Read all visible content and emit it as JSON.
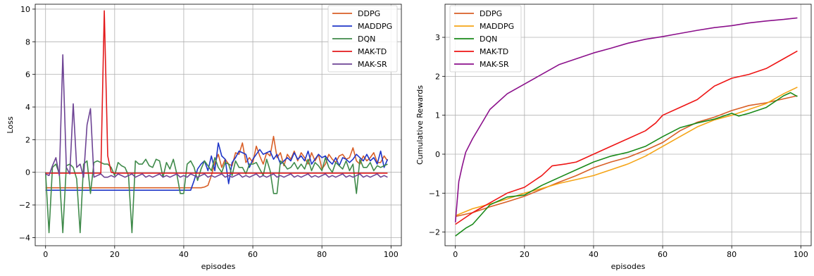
{
  "chart_data": [
    {
      "type": "line",
      "xlabel": "episodes",
      "ylabel": "Loss",
      "xlim": [
        -3,
        103
      ],
      "ylim": [
        -4.5,
        10.3
      ],
      "xticks": [
        0,
        20,
        40,
        60,
        80,
        100
      ],
      "yticks": [
        -4,
        -2,
        0,
        2,
        4,
        6,
        8,
        10
      ],
      "grid": true,
      "legend_position": "top-right",
      "series": [
        {
          "name": "DDPG",
          "color": "#d95f27",
          "values": [
            -0.95,
            -0.95,
            -0.95,
            -0.95,
            -0.95,
            -0.95,
            -0.95,
            -0.95,
            -0.95,
            -0.95,
            -0.95,
            -0.95,
            -0.95,
            -0.95,
            -0.95,
            -0.95,
            -0.95,
            -0.95,
            -0.95,
            -0.95,
            -0.95,
            -0.95,
            -0.95,
            -0.95,
            -0.95,
            -0.95,
            -0.95,
            -0.95,
            -0.95,
            -0.95,
            -0.95,
            -0.95,
            -0.95,
            -0.95,
            -0.95,
            -0.95,
            -0.95,
            -0.95,
            -0.95,
            -0.95,
            -0.95,
            -0.95,
            -0.95,
            -0.95,
            -0.95,
            -0.95,
            -0.9,
            -0.8,
            -0.2,
            0.6,
            1.1,
            0.3,
            0.8,
            0.5,
            0.4,
            1.2,
            1.1,
            1.8,
            0.6,
            0.9,
            0.6,
            1.6,
            1.0,
            0.5,
            1.2,
            1.0,
            2.2,
            0.9,
            1.2,
            0.4,
            1.1,
            0.8,
            1.3,
            0.7,
            1.2,
            0.9,
            0.5,
            1.2,
            0.7,
            1.1,
            0.2,
            0.5,
            1.1,
            0.8,
            0.6,
            1.0,
            1.1,
            0.8,
            0.9,
            1.5,
            0.7,
            0.5,
            1.0,
            0.7,
            0.9,
            1.2,
            0.6,
            0.6,
            1.0,
            0.7
          ]
        },
        {
          "name": "MADDPG",
          "color": "#1f36c8",
          "values": [
            -1.1,
            -1.1,
            -1.1,
            -1.1,
            -1.1,
            -1.1,
            -1.1,
            -1.1,
            -1.1,
            -1.1,
            -1.1,
            -1.1,
            -1.1,
            -1.1,
            -1.1,
            -1.1,
            -1.1,
            -1.1,
            -1.1,
            -1.1,
            -1.1,
            -1.1,
            -1.1,
            -1.1,
            -1.1,
            -1.1,
            -1.1,
            -1.1,
            -1.1,
            -1.1,
            -1.1,
            -1.1,
            -1.1,
            -1.1,
            -1.1,
            -1.1,
            -1.1,
            -1.1,
            -1.1,
            -1.1,
            -1.1,
            -1.1,
            -1.1,
            -0.5,
            0.2,
            0.5,
            0.7,
            0.1,
            1.0,
            0.1,
            1.8,
            1.0,
            0.8,
            -0.7,
            0.6,
            0.9,
            1.3,
            1.2,
            1.1,
            0.3,
            0.8,
            1.1,
            1.4,
            1.1,
            1.2,
            1.3,
            0.8,
            1.1,
            0.5,
            0.7,
            0.9,
            0.7,
            1.2,
            0.8,
            1.0,
            0.7,
            1.3,
            0.5,
            0.8,
            1.1,
            0.9,
            1.0,
            0.7,
            0.5,
            0.9,
            0.4,
            0.9,
            0.8,
            0.6,
            0.8,
            1.1,
            0.9,
            0.7,
            1.1,
            0.7,
            0.9,
            0.5,
            1.3,
            0.3,
            0.8
          ]
        },
        {
          "name": "DQN",
          "color": "#3f8a4a",
          "values": [
            0.0,
            -3.7,
            0.3,
            0.5,
            -0.1,
            -3.7,
            0.4,
            0.5,
            0.3,
            -0.4,
            -3.7,
            0.5,
            0.7,
            -1.3,
            0.6,
            0.7,
            0.6,
            0.5,
            0.5,
            0.3,
            -0.2,
            0.6,
            0.4,
            0.3,
            -0.2,
            -3.7,
            0.7,
            0.5,
            0.5,
            0.8,
            0.4,
            0.3,
            0.8,
            0.7,
            -0.3,
            0.6,
            0.2,
            0.8,
            -0.1,
            -1.3,
            -1.3,
            0.5,
            0.7,
            0.3,
            -0.5,
            0.2,
            0.7,
            0.4,
            0.1,
            0.9,
            0.3,
            0.0,
            0.6,
            0.5,
            -0.2,
            0.7,
            0.3,
            0.3,
            -0.1,
            0.5,
            0.5,
            0.6,
            0.2,
            -0.2,
            0.8,
            0.1,
            -1.3,
            -1.3,
            0.7,
            0.5,
            0.2,
            0.3,
            0.6,
            0.2,
            0.5,
            0.2,
            0.8,
            0.1,
            0.6,
            0.4,
            0.1,
            0.9,
            0.3,
            0.0,
            0.6,
            0.4,
            0.2,
            0.7,
            0.1,
            0.5,
            -1.3,
            0.8,
            0.3,
            0.3,
            0.6,
            0.1,
            0.4,
            0.3,
            0.4,
            0.5
          ]
        },
        {
          "name": "MAK-TD",
          "color": "#e31a1c",
          "values": [
            -0.05,
            -0.05,
            -0.05,
            -0.05,
            -0.05,
            -0.05,
            -0.05,
            -0.05,
            -0.05,
            -0.05,
            -0.05,
            -0.05,
            -0.05,
            -0.05,
            -0.05,
            -0.05,
            -0.05,
            9.9,
            1.0,
            0.0,
            -0.05,
            -0.05,
            -0.05,
            -0.05,
            -0.05,
            -0.05,
            -0.05,
            -0.05,
            -0.05,
            -0.05,
            -0.05,
            -0.05,
            -0.05,
            -0.05,
            -0.05,
            -0.05,
            -0.05,
            -0.05,
            -0.05,
            -0.05,
            -0.05,
            -0.05,
            -0.05,
            -0.05,
            -0.05,
            -0.05,
            -0.05,
            -0.05,
            -0.05,
            -0.05,
            -0.05,
            -0.05,
            -0.05,
            -0.05,
            -0.05,
            -0.05,
            -0.05,
            -0.05,
            -0.05,
            -0.05,
            -0.05,
            -0.05,
            -0.05,
            -0.05,
            -0.05,
            -0.05,
            -0.05,
            -0.05,
            -0.05,
            -0.05,
            -0.05,
            -0.05,
            -0.05,
            -0.05,
            -0.05,
            -0.05,
            -0.05,
            -0.05,
            -0.05,
            -0.05,
            -0.05,
            -0.05,
            -0.05,
            -0.05,
            -0.05,
            -0.05,
            -0.05,
            -0.05,
            -0.05,
            -0.05,
            -0.05,
            -0.05,
            -0.05,
            -0.05,
            -0.05,
            -0.05,
            -0.05,
            -0.05,
            -0.05,
            -0.05
          ]
        },
        {
          "name": "MAK-SR",
          "color": "#6d4394",
          "values": [
            -0.1,
            -0.2,
            0.4,
            0.9,
            -0.2,
            7.2,
            0.3,
            -0.1,
            4.2,
            0.3,
            0.5,
            -0.3,
            2.9,
            3.9,
            -0.3,
            -0.2,
            -0.1,
            -0.3,
            -0.3,
            -0.2,
            -0.3,
            -0.1,
            -0.2,
            -0.3,
            -0.2,
            -0.1,
            -0.3,
            -0.2,
            -0.1,
            -0.3,
            -0.2,
            -0.3,
            -0.2,
            -0.1,
            -0.3,
            -0.2,
            -0.3,
            -0.2,
            -0.1,
            -0.3,
            -0.2,
            -0.3,
            -0.1,
            -0.2,
            -0.3,
            -0.2,
            -0.1,
            -0.3,
            -0.2,
            -0.3,
            -0.2,
            -0.1,
            -0.3,
            -0.2,
            -0.3,
            -0.2,
            -0.1,
            -0.3,
            -0.2,
            -0.3,
            -0.2,
            -0.1,
            -0.3,
            -0.2,
            -0.3,
            -0.2,
            -0.1,
            -0.3,
            -0.2,
            -0.3,
            -0.2,
            -0.1,
            -0.3,
            -0.2,
            -0.3,
            -0.2,
            -0.1,
            -0.3,
            -0.2,
            -0.3,
            -0.2,
            -0.1,
            -0.3,
            -0.2,
            -0.3,
            -0.2,
            -0.1,
            -0.3,
            -0.2,
            -0.3,
            -0.2,
            -0.1,
            -0.3,
            -0.2,
            -0.3,
            -0.2,
            -0.1,
            -0.3,
            -0.2,
            -0.3
          ]
        }
      ]
    },
    {
      "type": "line",
      "xlabel": "episodes",
      "ylabel": "Cumulative Rewards",
      "xlim": [
        -3,
        103
      ],
      "ylim": [
        -2.35,
        3.85
      ],
      "xticks": [
        0,
        20,
        40,
        60,
        80,
        100
      ],
      "yticks": [
        -2,
        -1,
        0,
        1,
        2,
        3
      ],
      "grid": true,
      "legend_position": "top-left",
      "series": [
        {
          "name": "DDPG",
          "color": "#d95f27",
          "points": [
            [
              0,
              -1.6
            ],
            [
              5,
              -1.5
            ],
            [
              10,
              -1.35
            ],
            [
              15,
              -1.22
            ],
            [
              20,
              -1.08
            ],
            [
              25,
              -0.9
            ],
            [
              30,
              -0.72
            ],
            [
              35,
              -0.55
            ],
            [
              40,
              -0.35
            ],
            [
              45,
              -0.2
            ],
            [
              50,
              -0.08
            ],
            [
              55,
              0.1
            ],
            [
              60,
              0.3
            ],
            [
              65,
              0.6
            ],
            [
              70,
              0.82
            ],
            [
              75,
              0.95
            ],
            [
              80,
              1.12
            ],
            [
              85,
              1.25
            ],
            [
              90,
              1.32
            ],
            [
              95,
              1.42
            ],
            [
              99,
              1.5
            ]
          ]
        },
        {
          "name": "MADDPG",
          "color": "#f5a416",
          "points": [
            [
              0,
              -1.58
            ],
            [
              5,
              -1.4
            ],
            [
              10,
              -1.28
            ],
            [
              15,
              -1.15
            ],
            [
              20,
              -1.0
            ],
            [
              25,
              -0.88
            ],
            [
              30,
              -0.75
            ],
            [
              35,
              -0.65
            ],
            [
              40,
              -0.55
            ],
            [
              45,
              -0.4
            ],
            [
              50,
              -0.25
            ],
            [
              55,
              -0.05
            ],
            [
              60,
              0.2
            ],
            [
              65,
              0.45
            ],
            [
              70,
              0.7
            ],
            [
              75,
              0.88
            ],
            [
              80,
              1.0
            ],
            [
              85,
              1.15
            ],
            [
              90,
              1.3
            ],
            [
              95,
              1.55
            ],
            [
              99,
              1.72
            ]
          ]
        },
        {
          "name": "DQN",
          "color": "#1a8a1a",
          "points": [
            [
              0,
              -2.1
            ],
            [
              3,
              -1.9
            ],
            [
              5,
              -1.8
            ],
            [
              10,
              -1.3
            ],
            [
              15,
              -1.1
            ],
            [
              20,
              -1.05
            ],
            [
              25,
              -0.8
            ],
            [
              30,
              -0.6
            ],
            [
              35,
              -0.4
            ],
            [
              40,
              -0.2
            ],
            [
              45,
              -0.05
            ],
            [
              50,
              0.05
            ],
            [
              55,
              0.2
            ],
            [
              60,
              0.45
            ],
            [
              65,
              0.68
            ],
            [
              70,
              0.8
            ],
            [
              75,
              0.9
            ],
            [
              80,
              1.05
            ],
            [
              82,
              0.98
            ],
            [
              85,
              1.05
            ],
            [
              90,
              1.2
            ],
            [
              95,
              1.5
            ],
            [
              97,
              1.58
            ],
            [
              99,
              1.48
            ]
          ]
        },
        {
          "name": "MAK-TD",
          "color": "#ee1515",
          "points": [
            [
              0,
              -1.8
            ],
            [
              5,
              -1.5
            ],
            [
              10,
              -1.25
            ],
            [
              15,
              -1.0
            ],
            [
              20,
              -0.85
            ],
            [
              25,
              -0.55
            ],
            [
              28,
              -0.3
            ],
            [
              32,
              -0.25
            ],
            [
              35,
              -0.2
            ],
            [
              40,
              0.0
            ],
            [
              45,
              0.2
            ],
            [
              50,
              0.4
            ],
            [
              55,
              0.6
            ],
            [
              58,
              0.8
            ],
            [
              60,
              1.0
            ],
            [
              65,
              1.2
            ],
            [
              70,
              1.4
            ],
            [
              75,
              1.75
            ],
            [
              80,
              1.95
            ],
            [
              85,
              2.05
            ],
            [
              90,
              2.2
            ],
            [
              95,
              2.45
            ],
            [
              99,
              2.65
            ]
          ]
        },
        {
          "name": "MAK-SR",
          "color": "#8b108b",
          "points": [
            [
              0,
              -1.75
            ],
            [
              1,
              -0.7
            ],
            [
              2,
              -0.3
            ],
            [
              3,
              0.05
            ],
            [
              5,
              0.4
            ],
            [
              8,
              0.85
            ],
            [
              10,
              1.15
            ],
            [
              15,
              1.55
            ],
            [
              20,
              1.8
            ],
            [
              25,
              2.05
            ],
            [
              30,
              2.3
            ],
            [
              35,
              2.45
            ],
            [
              40,
              2.6
            ],
            [
              45,
              2.72
            ],
            [
              50,
              2.85
            ],
            [
              55,
              2.95
            ],
            [
              60,
              3.02
            ],
            [
              65,
              3.1
            ],
            [
              70,
              3.18
            ],
            [
              75,
              3.25
            ],
            [
              80,
              3.3
            ],
            [
              85,
              3.37
            ],
            [
              90,
              3.42
            ],
            [
              95,
              3.46
            ],
            [
              99,
              3.5
            ]
          ]
        }
      ]
    }
  ]
}
